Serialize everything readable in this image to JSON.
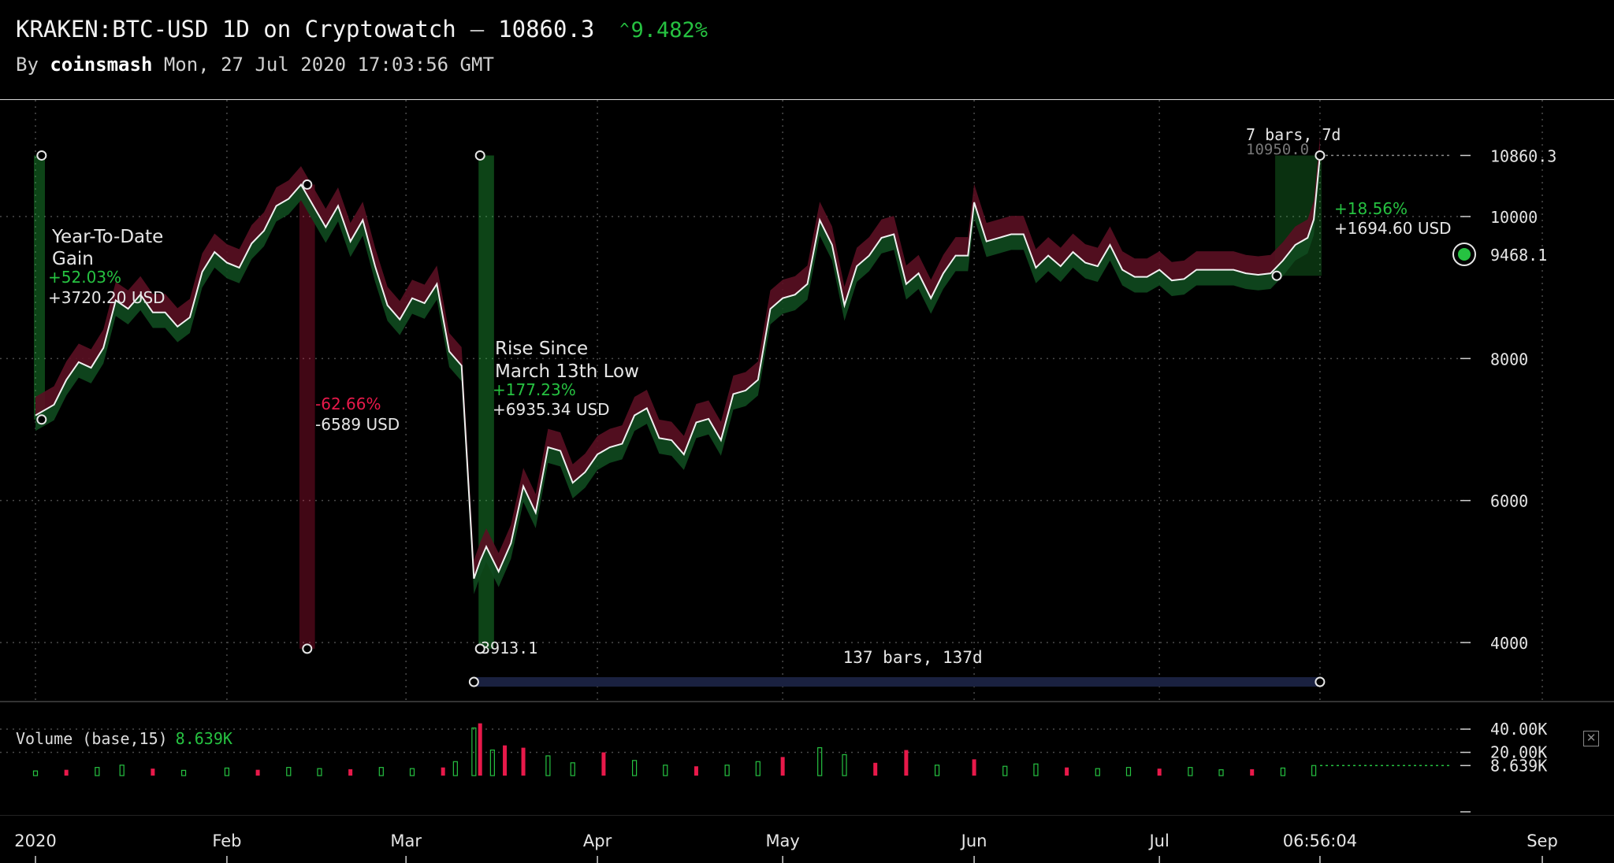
{
  "header": {
    "symbol": "KRAKEN:BTC-USD 1D on Cryptowatch",
    "separator": "—",
    "last_price": "10860.3",
    "change_arrow": "^",
    "change_pct": "9.482%",
    "by_label": "By",
    "author": "coinsmash",
    "timestamp": "Mon, 27 Jul 2020 17:03:56 GMT"
  },
  "colors": {
    "background": "#000000",
    "up": "#26c241",
    "down": "#e8194a",
    "line": "#f0f0f0",
    "measure_range": "#1a2140"
  },
  "chart_data": [
    {
      "type": "area",
      "title": "KRAKEN:BTC-USD 1D",
      "x_type": "date",
      "x_range": [
        "2020-01-01",
        "2020-09-01"
      ],
      "ylim": [
        3400,
        11300
      ],
      "y_ticks": [
        4000,
        6000,
        8000,
        10000
      ],
      "y_tick_labels": [
        "4000",
        "6000",
        "8000",
        "10000"
      ],
      "last_price_label": "10860.3",
      "marker_price_label": "9468.1",
      "grid": true,
      "x_ticks": [
        "2020",
        "Feb",
        "Mar",
        "Apr",
        "May",
        "Jun",
        "Jul",
        "06:56:04",
        "Sep"
      ],
      "x_tick_dates": [
        "2020-01-01",
        "2020-02-01",
        "2020-03-01",
        "2020-04-01",
        "2020-05-01",
        "2020-06-01",
        "2020-07-01",
        "2020-07-27",
        "2020-09-01"
      ],
      "series": [
        {
          "values": [
            [
              "2020-01-01",
              7200
            ],
            [
              "2020-01-04",
              7350
            ],
            [
              "2020-01-06",
              7700
            ],
            [
              "2020-01-08",
              7950
            ],
            [
              "2020-01-10",
              7870
            ],
            [
              "2020-01-12",
              8150
            ],
            [
              "2020-01-14",
              8820
            ],
            [
              "2020-01-16",
              8700
            ],
            [
              "2020-01-18",
              8900
            ],
            [
              "2020-01-20",
              8650
            ],
            [
              "2020-01-22",
              8650
            ],
            [
              "2020-01-24",
              8450
            ],
            [
              "2020-01-26",
              8580
            ],
            [
              "2020-01-28",
              9220
            ],
            [
              "2020-01-30",
              9500
            ],
            [
              "2020-02-01",
              9350
            ],
            [
              "2020-02-03",
              9280
            ],
            [
              "2020-02-05",
              9620
            ],
            [
              "2020-02-07",
              9800
            ],
            [
              "2020-02-09",
              10150
            ],
            [
              "2020-02-11",
              10250
            ],
            [
              "2020-02-13",
              10450
            ],
            [
              "2020-02-15",
              10150
            ],
            [
              "2020-02-17",
              9850
            ],
            [
              "2020-02-19",
              10150
            ],
            [
              "2020-02-21",
              9650
            ],
            [
              "2020-02-23",
              9950
            ],
            [
              "2020-02-25",
              9300
            ],
            [
              "2020-02-27",
              8750
            ],
            [
              "2020-02-29",
              8550
            ],
            [
              "2020-03-02",
              8850
            ],
            [
              "2020-03-04",
              8780
            ],
            [
              "2020-03-06",
              9050
            ],
            [
              "2020-03-08",
              8100
            ],
            [
              "2020-03-10",
              7900
            ],
            [
              "2020-03-12",
              4900
            ],
            [
              "2020-03-13",
              5150
            ],
            [
              "2020-03-14",
              5350
            ],
            [
              "2020-03-16",
              5000
            ],
            [
              "2020-03-18",
              5400
            ],
            [
              "2020-03-20",
              6200
            ],
            [
              "2020-03-22",
              5830
            ],
            [
              "2020-03-24",
              6750
            ],
            [
              "2020-03-26",
              6700
            ],
            [
              "2020-03-28",
              6250
            ],
            [
              "2020-03-30",
              6400
            ],
            [
              "2020-04-01",
              6650
            ],
            [
              "2020-04-03",
              6750
            ],
            [
              "2020-04-05",
              6800
            ],
            [
              "2020-04-07",
              7200
            ],
            [
              "2020-04-09",
              7300
            ],
            [
              "2020-04-11",
              6880
            ],
            [
              "2020-04-13",
              6850
            ],
            [
              "2020-04-15",
              6650
            ],
            [
              "2020-04-17",
              7100
            ],
            [
              "2020-04-19",
              7150
            ],
            [
              "2020-04-21",
              6850
            ],
            [
              "2020-04-23",
              7500
            ],
            [
              "2020-04-25",
              7550
            ],
            [
              "2020-04-27",
              7700
            ],
            [
              "2020-04-29",
              8700
            ],
            [
              "2020-05-01",
              8850
            ],
            [
              "2020-05-03",
              8900
            ],
            [
              "2020-05-05",
              9050
            ],
            [
              "2020-05-07",
              9950
            ],
            [
              "2020-05-09",
              9600
            ],
            [
              "2020-05-11",
              8750
            ],
            [
              "2020-05-13",
              9300
            ],
            [
              "2020-05-15",
              9450
            ],
            [
              "2020-05-17",
              9700
            ],
            [
              "2020-05-19",
              9750
            ],
            [
              "2020-05-21",
              9050
            ],
            [
              "2020-05-23",
              9200
            ],
            [
              "2020-05-25",
              8850
            ],
            [
              "2020-05-27",
              9200
            ],
            [
              "2020-05-29",
              9450
            ],
            [
              "2020-05-31",
              9450
            ],
            [
              "2020-06-01",
              10200
            ],
            [
              "2020-06-03",
              9650
            ],
            [
              "2020-06-05",
              9700
            ],
            [
              "2020-06-07",
              9750
            ],
            [
              "2020-06-09",
              9750
            ],
            [
              "2020-06-11",
              9280
            ],
            [
              "2020-06-13",
              9450
            ],
            [
              "2020-06-15",
              9300
            ],
            [
              "2020-06-17",
              9500
            ],
            [
              "2020-06-19",
              9350
            ],
            [
              "2020-06-21",
              9300
            ],
            [
              "2020-06-23",
              9600
            ],
            [
              "2020-06-25",
              9250
            ],
            [
              "2020-06-27",
              9150
            ],
            [
              "2020-06-29",
              9150
            ],
            [
              "2020-07-01",
              9250
            ],
            [
              "2020-07-03",
              9100
            ],
            [
              "2020-07-05",
              9120
            ],
            [
              "2020-07-07",
              9250
            ],
            [
              "2020-07-09",
              9250
            ],
            [
              "2020-07-11",
              9250
            ],
            [
              "2020-07-13",
              9250
            ],
            [
              "2020-07-15",
              9200
            ],
            [
              "2020-07-17",
              9180
            ],
            [
              "2020-07-19",
              9200
            ],
            [
              "2020-07-21",
              9380
            ],
            [
              "2020-07-23",
              9600
            ],
            [
              "2020-07-25",
              9700
            ],
            [
              "2020-07-26",
              9960
            ],
            [
              "2020-07-27",
              10860
            ]
          ]
        }
      ],
      "annotations": [
        {
          "type": "label",
          "lines": [
            "Year-To-Date",
            "Gain"
          ]
        },
        {
          "type": "change",
          "pct": "+52.03%",
          "abs": "+3720.20 USD",
          "direction": "up"
        },
        {
          "type": "change",
          "pct": "-62.66%",
          "abs": "-6589 USD",
          "direction": "down"
        },
        {
          "type": "label",
          "lines": [
            "Rise Since",
            "March 13th Low"
          ]
        },
        {
          "type": "change",
          "pct": "+177.23%",
          "abs": "+6935.34 USD",
          "direction": "up"
        },
        {
          "type": "change",
          "pct": "+18.56%",
          "abs": "+1694.60 USD",
          "direction": "up"
        },
        {
          "type": "bars",
          "text": "7 bars, 7d"
        },
        {
          "type": "bars",
          "text": "137 bars, 137d"
        },
        {
          "type": "price",
          "text": "10950.0"
        },
        {
          "type": "price",
          "text": "3913.1"
        }
      ]
    },
    {
      "type": "bar",
      "title": "Volume (base,15)",
      "current_value": "8.639K",
      "ylim": [
        0,
        48000
      ],
      "y_ticks": [
        20000,
        40000
      ],
      "y_tick_labels": [
        "20.00K",
        "40.00K"
      ],
      "series": [
        {
          "values": [
            [
              "2020-01-01",
              4000
            ],
            [
              "2020-01-06",
              5000
            ],
            [
              "2020-01-11",
              7000
            ],
            [
              "2020-01-15",
              9000
            ],
            [
              "2020-01-20",
              6000
            ],
            [
              "2020-01-25",
              4500
            ],
            [
              "2020-02-01",
              6500
            ],
            [
              "2020-02-06",
              5000
            ],
            [
              "2020-02-11",
              7000
            ],
            [
              "2020-02-16",
              6000
            ],
            [
              "2020-02-21",
              5500
            ],
            [
              "2020-02-26",
              7000
            ],
            [
              "2020-03-02",
              6000
            ],
            [
              "2020-03-07",
              7000
            ],
            [
              "2020-03-09",
              12000
            ],
            [
              "2020-03-12",
              41000
            ],
            [
              "2020-03-13",
              45000
            ],
            [
              "2020-03-15",
              22000
            ],
            [
              "2020-03-17",
              26000
            ],
            [
              "2020-03-20",
              24000
            ],
            [
              "2020-03-24",
              17000
            ],
            [
              "2020-03-28",
              11000
            ],
            [
              "2020-04-02",
              20000
            ],
            [
              "2020-04-07",
              13000
            ],
            [
              "2020-04-12",
              9000
            ],
            [
              "2020-04-17",
              8000
            ],
            [
              "2020-04-22",
              9000
            ],
            [
              "2020-04-27",
              12000
            ],
            [
              "2020-05-01",
              16000
            ],
            [
              "2020-05-07",
              24000
            ],
            [
              "2020-05-11",
              18000
            ],
            [
              "2020-05-16",
              11000
            ],
            [
              "2020-05-21",
              22000
            ],
            [
              "2020-05-26",
              9000
            ],
            [
              "2020-06-01",
              14000
            ],
            [
              "2020-06-06",
              8000
            ],
            [
              "2020-06-11",
              10000
            ],
            [
              "2020-06-16",
              7000
            ],
            [
              "2020-06-21",
              6000
            ],
            [
              "2020-06-26",
              7000
            ],
            [
              "2020-07-01",
              6000
            ],
            [
              "2020-07-06",
              7000
            ],
            [
              "2020-07-11",
              5000
            ],
            [
              "2020-07-16",
              5500
            ],
            [
              "2020-07-21",
              6500
            ],
            [
              "2020-07-26",
              8639
            ]
          ]
        }
      ]
    }
  ]
}
